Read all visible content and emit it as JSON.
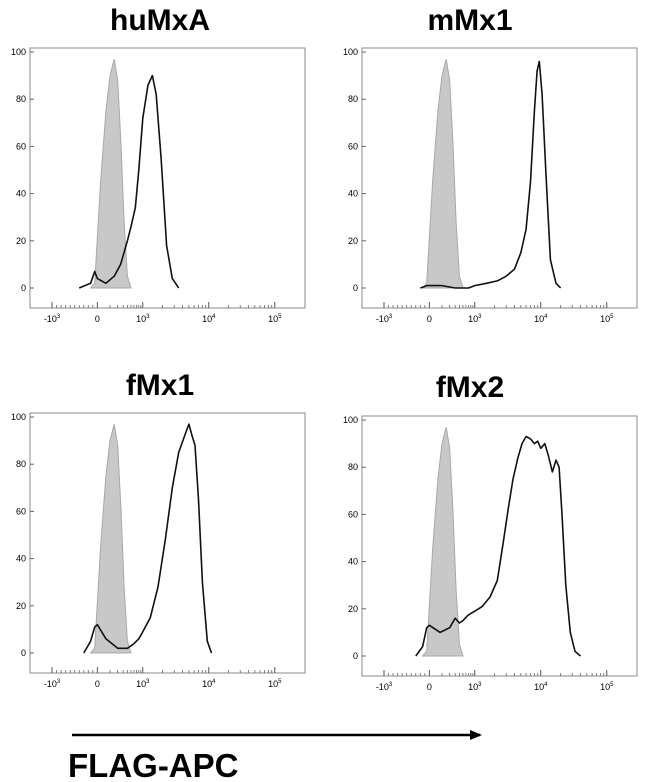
{
  "figure": {
    "xlabel": "FLAG-APC",
    "colors": {
      "control_fill": "#c8c8c8",
      "control_stroke": "#a8a8a8",
      "sample_stroke": "#111111",
      "frame": "#888888"
    }
  },
  "chart_data": [
    {
      "type": "area",
      "title": "huMxA",
      "x_axis": {
        "scale": "biexponential",
        "ticks": [
          "-10^3",
          "0",
          "10^3",
          "10^4",
          "10^5"
        ]
      },
      "y_axis": {
        "range": [
          0,
          100
        ],
        "ticks": [
          "0",
          "20",
          "40",
          "60",
          "80",
          "100"
        ]
      },
      "series": [
        {
          "role": "control",
          "fill": true,
          "x": [
            -150,
            -60,
            -20,
            20,
            60,
            100,
            150,
            200,
            260,
            320,
            400,
            500
          ],
          "y": [
            0,
            2,
            15,
            45,
            75,
            90,
            97,
            88,
            60,
            28,
            5,
            0
          ]
        },
        {
          "role": "sample",
          "fill": false,
          "x": [
            -400,
            -150,
            -60,
            0,
            60,
            150,
            250,
            400,
            500,
            650,
            800,
            1000,
            1200,
            1400,
            1600,
            1900,
            2300,
            2800,
            3500
          ],
          "y": [
            0,
            2,
            7,
            4,
            2,
            5,
            10,
            20,
            26,
            34,
            50,
            72,
            86,
            90,
            82,
            55,
            18,
            4,
            0
          ]
        }
      ]
    },
    {
      "type": "area",
      "title": "mMx1",
      "x_axis": {
        "scale": "biexponential",
        "ticks": [
          "-10^3",
          "0",
          "10^3",
          "10^4",
          "10^5"
        ]
      },
      "y_axis": {
        "range": [
          0,
          100
        ],
        "ticks": [
          "0",
          "20",
          "40",
          "60",
          "80",
          "100"
        ]
      },
      "series": [
        {
          "role": "control",
          "fill": true,
          "x": [
            -150,
            -60,
            -20,
            20,
            60,
            100,
            150,
            200,
            260,
            320,
            400,
            500
          ],
          "y": [
            0,
            2,
            15,
            45,
            75,
            90,
            97,
            88,
            60,
            28,
            5,
            0
          ]
        },
        {
          "role": "sample",
          "fill": false,
          "x": [
            -200,
            -50,
            100,
            300,
            700,
            1000,
            1500,
            2200,
            3000,
            4000,
            5000,
            6000,
            7000,
            8000,
            8800,
            9500,
            10500,
            12000,
            14000,
            17000,
            20000
          ],
          "y": [
            0,
            1,
            1,
            0,
            0,
            1,
            2,
            3,
            5,
            8,
            15,
            25,
            45,
            75,
            92,
            96,
            82,
            48,
            12,
            2,
            0
          ]
        }
      ]
    },
    {
      "type": "area",
      "title": "fMx1",
      "x_axis": {
        "scale": "biexponential",
        "ticks": [
          "-10^3",
          "0",
          "10^3",
          "10^4",
          "10^5"
        ]
      },
      "y_axis": {
        "range": [
          0,
          100
        ],
        "ticks": [
          "0",
          "20",
          "40",
          "60",
          "80",
          "100"
        ]
      },
      "series": [
        {
          "role": "control",
          "fill": true,
          "x": [
            -150,
            -60,
            -20,
            20,
            60,
            100,
            150,
            200,
            260,
            320,
            400,
            500
          ],
          "y": [
            0,
            2,
            15,
            45,
            75,
            90,
            97,
            88,
            60,
            28,
            5,
            0
          ]
        },
        {
          "role": "sample",
          "fill": false,
          "x": [
            -300,
            -150,
            -60,
            0,
            60,
            200,
            400,
            600,
            800,
            1000,
            1300,
            1700,
            2200,
            2800,
            3500,
            4300,
            5000,
            5600,
            6200,
            7000,
            8000,
            9500,
            11000
          ],
          "y": [
            0,
            5,
            11,
            12,
            6,
            2,
            2,
            4,
            6,
            9,
            15,
            28,
            48,
            70,
            85,
            92,
            97,
            92,
            88,
            65,
            30,
            5,
            0
          ]
        }
      ]
    },
    {
      "type": "area",
      "title": "fMx2",
      "x_axis": {
        "scale": "biexponential",
        "ticks": [
          "-10^3",
          "0",
          "10^3",
          "10^4",
          "10^5"
        ]
      },
      "y_axis": {
        "range": [
          0,
          100
        ],
        "ticks": [
          "0",
          "20",
          "40",
          "60",
          "80",
          "100"
        ]
      },
      "series": [
        {
          "role": "control",
          "fill": true,
          "x": [
            -150,
            -60,
            -20,
            20,
            60,
            100,
            150,
            200,
            260,
            320,
            400,
            500
          ],
          "y": [
            0,
            2,
            15,
            45,
            75,
            90,
            97,
            88,
            60,
            28,
            5,
            0
          ]
        },
        {
          "role": "sample",
          "fill": false,
          "x": [
            -300,
            -150,
            -60,
            0,
            80,
            200,
            300,
            400,
            500,
            650,
            800,
            1000,
            1300,
            1700,
            2200,
            2700,
            3200,
            3800,
            4500,
            5200,
            6000,
            7000,
            8000,
            9000,
            10000,
            11500,
            13000,
            15000,
            17000,
            19000,
            21000,
            24000,
            28000,
            33000,
            40000
          ],
          "y": [
            0,
            4,
            12,
            13,
            10,
            12,
            16,
            14,
            15,
            17,
            18,
            19,
            21,
            25,
            32,
            48,
            62,
            75,
            84,
            90,
            93,
            92,
            90,
            91,
            88,
            90,
            85,
            78,
            83,
            80,
            60,
            30,
            10,
            2,
            0
          ]
        }
      ]
    }
  ]
}
